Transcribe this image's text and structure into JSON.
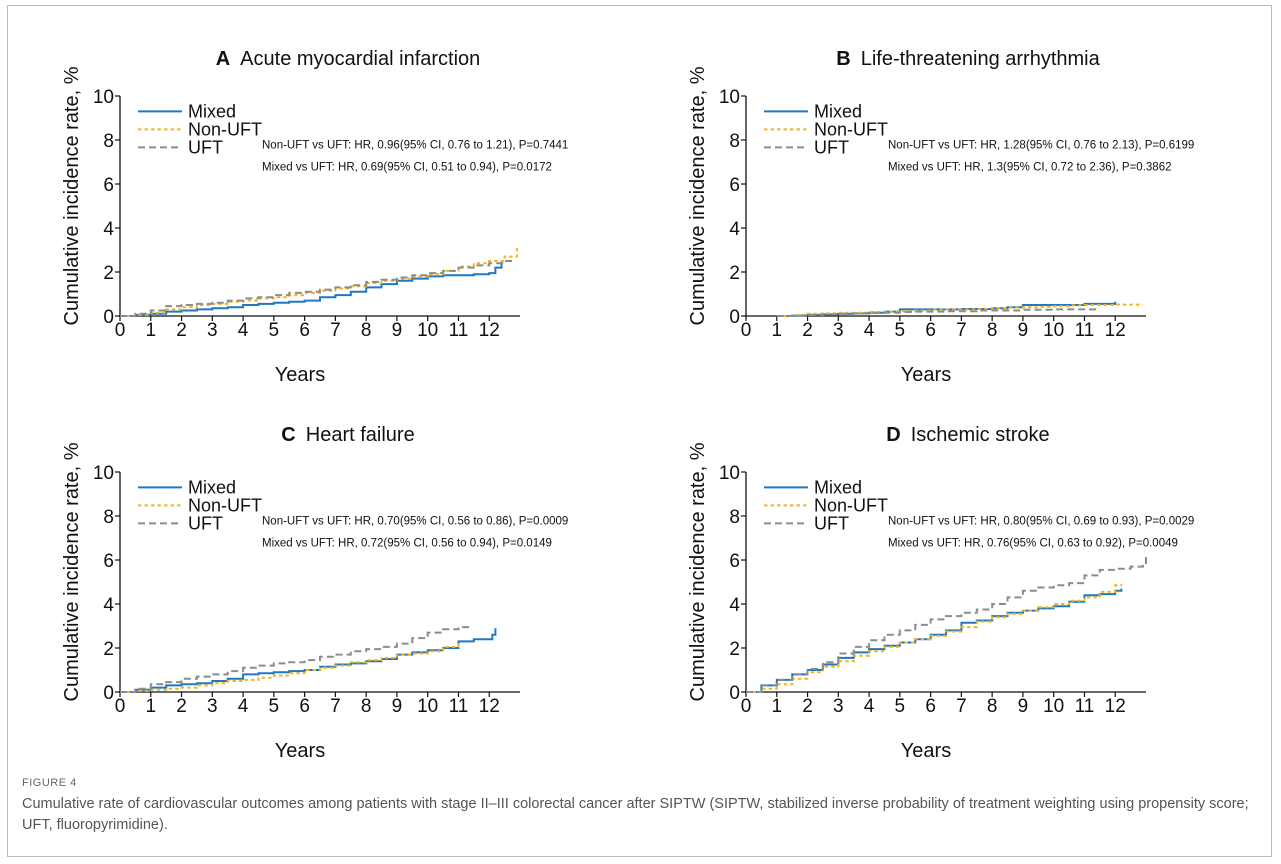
{
  "figure": {
    "label": "FIGURE 4",
    "caption": "Cumulative rate of cardiovascular outcomes among patients with stage II–III colorectal cancer after SIPTW (SIPTW, stabilized inverse probability of treatment weighting using propensity score; UFT, fluoropyrimidine)."
  },
  "colors": {
    "Mixed": "#1f78c1",
    "Non-UFT": "#f2b51c",
    "UFT": "#8c8c8c"
  },
  "chart_data": [
    {
      "type": "line",
      "panel": "A",
      "title": "Acute myocardial infarction",
      "xlabel": "Years",
      "ylabel": "Cumulative incidence rate, %",
      "xlim": [
        0,
        13
      ],
      "ylim": [
        0,
        10
      ],
      "xticks": [
        0,
        1,
        2,
        3,
        4,
        5,
        6,
        7,
        8,
        9,
        10,
        11,
        12
      ],
      "yticks": [
        0,
        2,
        4,
        6,
        8,
        10
      ],
      "legend": [
        "Mixed",
        "Non-UFT",
        "UFT"
      ],
      "annotations": [
        "Non-UFT vs UFT: HR, 0.96(95% CI, 0.76 to 1.21), P=0.7441",
        "Mixed vs UFT: HR, 0.69(95% CI, 0.51 to 0.94), P=0.0172"
      ],
      "series": [
        {
          "name": "Mixed",
          "x": [
            0,
            0.5,
            1,
            1.5,
            2,
            2.5,
            3,
            3.5,
            4,
            4.5,
            5,
            5.5,
            6,
            6.5,
            7,
            7.5,
            8,
            8.5,
            9,
            9.5,
            10,
            10.5,
            11,
            11.5,
            12,
            12.2,
            12.4
          ],
          "y": [
            0,
            0.05,
            0.1,
            0.2,
            0.25,
            0.3,
            0.35,
            0.4,
            0.5,
            0.55,
            0.6,
            0.65,
            0.7,
            0.85,
            0.95,
            1.1,
            1.3,
            1.45,
            1.6,
            1.7,
            1.8,
            1.85,
            1.85,
            1.9,
            1.95,
            2.2,
            2.5
          ]
        },
        {
          "name": "Non-UFT",
          "x": [
            0,
            0.5,
            1,
            1.5,
            2,
            2.5,
            3,
            3.5,
            4,
            4.5,
            5,
            5.5,
            6,
            6.5,
            7,
            7.5,
            8,
            8.5,
            9,
            9.5,
            10,
            10.5,
            11,
            11.5,
            12,
            12.5,
            12.9
          ],
          "y": [
            0,
            0.05,
            0.15,
            0.3,
            0.4,
            0.5,
            0.55,
            0.65,
            0.7,
            0.8,
            0.85,
            0.95,
            1.05,
            1.15,
            1.25,
            1.35,
            1.5,
            1.6,
            1.7,
            1.8,
            1.9,
            2.05,
            2.25,
            2.4,
            2.5,
            2.7,
            3.1
          ]
        },
        {
          "name": "UFT",
          "x": [
            0,
            0.5,
            1,
            1.5,
            2,
            2.5,
            3,
            3.5,
            4,
            4.5,
            5,
            5.5,
            6,
            6.5,
            7,
            7.5,
            8,
            8.5,
            9,
            9.5,
            10,
            10.5,
            11,
            11.5,
            12,
            12.5,
            12.8
          ],
          "y": [
            0,
            0.1,
            0.25,
            0.45,
            0.5,
            0.55,
            0.6,
            0.7,
            0.8,
            0.85,
            0.95,
            1.05,
            1.1,
            1.2,
            1.3,
            1.4,
            1.55,
            1.65,
            1.75,
            1.85,
            1.95,
            2.05,
            2.2,
            2.3,
            2.4,
            2.5,
            2.55
          ]
        }
      ]
    },
    {
      "type": "line",
      "panel": "B",
      "title": "Life-threatening arrhythmia",
      "xlabel": "Years",
      "ylabel": "Cumulative incidence rate, %",
      "xlim": [
        0,
        13
      ],
      "ylim": [
        0,
        10
      ],
      "xticks": [
        0,
        1,
        2,
        3,
        4,
        5,
        6,
        7,
        8,
        9,
        10,
        11,
        12
      ],
      "yticks": [
        0,
        2,
        4,
        6,
        8,
        10
      ],
      "legend": [
        "Mixed",
        "Non-UFT",
        "UFT"
      ],
      "annotations": [
        "Non-UFT vs UFT: HR, 1.28(95% CI, 0.76 to 2.13), P=0.6199",
        "Mixed vs UFT: HR, 1.3(95% CI, 0.72 to 2.36), P=0.3862"
      ],
      "series": [
        {
          "name": "Mixed",
          "x": [
            1,
            1.5,
            2,
            2.5,
            3,
            3.5,
            4,
            4.5,
            5,
            5.5,
            6,
            6.5,
            7,
            7.5,
            8,
            8.5,
            9,
            9.5,
            10,
            10.5,
            11,
            11.5,
            12
          ],
          "y": [
            0,
            0.02,
            0.05,
            0.08,
            0.1,
            0.12,
            0.15,
            0.2,
            0.3,
            0.3,
            0.3,
            0.3,
            0.32,
            0.32,
            0.35,
            0.4,
            0.5,
            0.5,
            0.5,
            0.5,
            0.55,
            0.55,
            0.65
          ]
        },
        {
          "name": "Non-UFT",
          "x": [
            1,
            1.5,
            2,
            2.5,
            3,
            3.5,
            4,
            4.5,
            5,
            5.5,
            6,
            6.5,
            7,
            7.5,
            8,
            8.5,
            9,
            9.5,
            10,
            10.5,
            11,
            11.5,
            12,
            12.5,
            12.9
          ],
          "y": [
            0,
            0.05,
            0.1,
            0.12,
            0.15,
            0.15,
            0.18,
            0.2,
            0.22,
            0.25,
            0.28,
            0.3,
            0.3,
            0.32,
            0.35,
            0.38,
            0.4,
            0.42,
            0.45,
            0.48,
            0.5,
            0.5,
            0.52,
            0.52,
            0.52
          ]
        },
        {
          "name": "UFT",
          "x": [
            1,
            1.5,
            2,
            2.5,
            3,
            3.5,
            4,
            4.5,
            5,
            5.5,
            6,
            6.5,
            7,
            7.5,
            8,
            8.5,
            9,
            9.5,
            10,
            10.5,
            11,
            11.5
          ],
          "y": [
            0,
            0.02,
            0.05,
            0.08,
            0.1,
            0.12,
            0.15,
            0.15,
            0.18,
            0.2,
            0.2,
            0.22,
            0.22,
            0.25,
            0.25,
            0.25,
            0.28,
            0.28,
            0.3,
            0.3,
            0.3,
            0.32
          ]
        }
      ]
    },
    {
      "type": "line",
      "panel": "C",
      "title": "Heart failure",
      "xlabel": "Years",
      "ylabel": "Cumulative incidence rate, %",
      "xlim": [
        0,
        13
      ],
      "ylim": [
        0,
        10
      ],
      "xticks": [
        0,
        1,
        2,
        3,
        4,
        5,
        6,
        7,
        8,
        9,
        10,
        11,
        12
      ],
      "yticks": [
        0,
        2,
        4,
        6,
        8,
        10
      ],
      "legend": [
        "Mixed",
        "Non-UFT",
        "UFT"
      ],
      "annotations": [
        "Non-UFT vs UFT: HR, 0.70(95% CI, 0.56 to 0.86), P=0.0009",
        "Mixed vs UFT: HR, 0.72(95% CI, 0.56 to 0.94), P=0.0149"
      ],
      "series": [
        {
          "name": "Mixed",
          "x": [
            0,
            0.5,
            1,
            1.5,
            2,
            2.5,
            3,
            3.5,
            4,
            4.5,
            5,
            5.5,
            6,
            6.5,
            7,
            7.5,
            8,
            8.5,
            9,
            9.5,
            10,
            10.5,
            11,
            11.5,
            12,
            12.1,
            12.2
          ],
          "y": [
            0,
            0.1,
            0.2,
            0.3,
            0.35,
            0.4,
            0.5,
            0.6,
            0.8,
            0.85,
            0.9,
            0.95,
            1.0,
            1.15,
            1.25,
            1.3,
            1.4,
            1.5,
            1.7,
            1.8,
            1.9,
            2.0,
            2.3,
            2.4,
            2.4,
            2.6,
            2.9
          ]
        },
        {
          "name": "Non-UFT",
          "x": [
            0,
            0.5,
            1,
            1.5,
            2,
            2.5,
            3,
            3.5,
            4,
            4.5,
            5,
            5.5,
            6,
            6.5,
            7,
            7.5,
            8,
            8.5,
            9,
            9.5,
            10,
            10.5,
            11
          ],
          "y": [
            0,
            0.05,
            0.1,
            0.15,
            0.2,
            0.3,
            0.4,
            0.5,
            0.55,
            0.65,
            0.75,
            0.85,
            1.0,
            1.1,
            1.2,
            1.35,
            1.45,
            1.55,
            1.7,
            1.75,
            1.85,
            2.05,
            2.3
          ]
        },
        {
          "name": "UFT",
          "x": [
            0,
            0.5,
            1,
            1.5,
            2,
            2.5,
            3,
            3.5,
            4,
            4.5,
            5,
            5.5,
            6,
            6.5,
            7,
            7.5,
            8,
            8.5,
            9,
            9.5,
            10,
            10.5,
            11,
            11.4
          ],
          "y": [
            0,
            0.15,
            0.35,
            0.45,
            0.6,
            0.7,
            0.8,
            0.95,
            1.1,
            1.2,
            1.3,
            1.35,
            1.45,
            1.6,
            1.7,
            1.85,
            1.95,
            2.05,
            2.2,
            2.45,
            2.7,
            2.85,
            2.95,
            3.0
          ]
        }
      ]
    },
    {
      "type": "line",
      "panel": "D",
      "title": "Ischemic stroke",
      "xlabel": "Years",
      "ylabel": "Cumulative incidence rate, %",
      "xlim": [
        0,
        13
      ],
      "ylim": [
        0,
        10
      ],
      "xticks": [
        0,
        1,
        2,
        3,
        4,
        5,
        6,
        7,
        8,
        9,
        10,
        11,
        12
      ],
      "yticks": [
        0,
        2,
        4,
        6,
        8,
        10
      ],
      "legend": [
        "Mixed",
        "Non-UFT",
        "UFT"
      ],
      "annotations": [
        "Non-UFT vs UFT: HR, 0.80(95% CI, 0.69 to 0.93), P=0.0029",
        "Mixed vs UFT: HR, 0.76(95% CI, 0.63 to 0.92), P=0.0049"
      ],
      "series": [
        {
          "name": "Mixed",
          "x": [
            0,
            0.5,
            1,
            1.5,
            2,
            2.5,
            3,
            3.5,
            4,
            4.5,
            5,
            5.5,
            6,
            6.5,
            7,
            7.5,
            8,
            8.5,
            9,
            9.5,
            10,
            10.5,
            11,
            11.5,
            12,
            12.2
          ],
          "y": [
            0,
            0.3,
            0.55,
            0.8,
            1.0,
            1.25,
            1.55,
            1.8,
            1.95,
            2.1,
            2.25,
            2.4,
            2.6,
            2.8,
            3.15,
            3.25,
            3.45,
            3.6,
            3.7,
            3.8,
            3.9,
            4.1,
            4.4,
            4.45,
            4.6,
            4.7
          ]
        },
        {
          "name": "Non-UFT",
          "x": [
            0,
            0.5,
            1,
            1.5,
            2,
            2.5,
            3,
            3.5,
            4,
            4.5,
            5,
            5.5,
            6,
            6.5,
            7,
            7.5,
            8,
            8.5,
            9,
            9.5,
            10,
            10.5,
            11,
            11.5,
            12,
            12.2
          ],
          "y": [
            0,
            0.15,
            0.35,
            0.6,
            0.9,
            1.15,
            1.4,
            1.65,
            1.85,
            2.05,
            2.25,
            2.4,
            2.55,
            2.75,
            2.95,
            3.2,
            3.4,
            3.55,
            3.7,
            3.85,
            4.0,
            4.15,
            4.3,
            4.55,
            4.85,
            4.9
          ]
        },
        {
          "name": "UFT",
          "x": [
            0,
            0.5,
            1,
            1.5,
            2,
            2.5,
            3,
            3.5,
            4,
            4.5,
            5,
            5.5,
            6,
            6.5,
            7,
            7.5,
            8,
            8.5,
            9,
            9.5,
            10,
            10.5,
            11,
            11.5,
            12,
            12.5,
            12.9,
            13
          ],
          "y": [
            0,
            0.3,
            0.55,
            0.8,
            1.05,
            1.35,
            1.75,
            2.05,
            2.35,
            2.6,
            2.8,
            3.05,
            3.3,
            3.45,
            3.6,
            3.75,
            4.0,
            4.3,
            4.6,
            4.75,
            4.85,
            4.95,
            5.3,
            5.55,
            5.6,
            5.7,
            5.8,
            6.2
          ]
        }
      ]
    }
  ]
}
